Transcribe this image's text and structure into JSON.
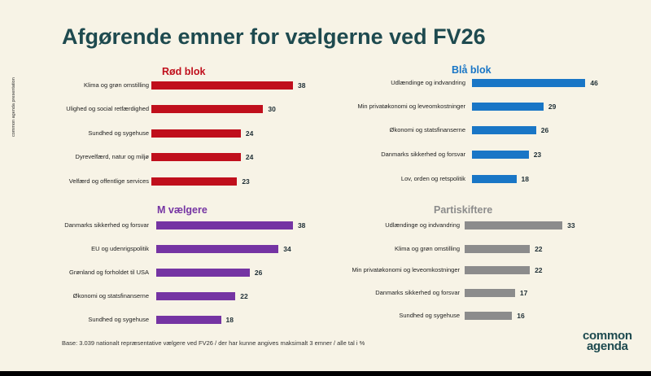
{
  "title": "Afgørende emner for vælgerne ved FV26",
  "side_label": "common agenda presentation",
  "footnote": "Base: 3.039 nationalt repræsentative vælgere ved FV26 / der har kunne angives maksimalt 3 emner / alle tal i %",
  "logo": {
    "line1": "common",
    "line2": "agenda"
  },
  "colors": {
    "rod": "#c00f1c",
    "bla": "#1976c6",
    "m": "#7534a3",
    "parti": "#8c8c8c"
  },
  "chart_data": [
    {
      "type": "bar",
      "orientation": "horizontal",
      "title": "Rød blok",
      "color": "#c00f1c",
      "categories": [
        "Klima og grøn omstilling",
        "Ulighed og social retfærdighed",
        "Sundhed og sygehuse",
        "Dyrevelfærd, natur og miljø",
        "Velfærd og offentlige services"
      ],
      "values": [
        38,
        30,
        24,
        24,
        23
      ],
      "labels": [
        "38",
        "30",
        "24",
        "24",
        "23"
      ]
    },
    {
      "type": "bar",
      "orientation": "horizontal",
      "title": "Blå blok",
      "color": "#1976c6",
      "categories": [
        "Udlændinge og indvandring",
        "Min privatøkonomi og leveomkostninger",
        "Økonomi og statsfinanserne",
        "Danmarks sikkerhed og forsvar",
        "Lov, orden og retspolitik"
      ],
      "values": [
        46,
        29,
        26,
        23,
        18
      ],
      "labels": [
        "46",
        "29",
        "26",
        "23",
        "18"
      ]
    },
    {
      "type": "bar",
      "orientation": "horizontal",
      "title": "M vælgere",
      "color": "#7534a3",
      "categories": [
        "Danmarks sikkerhed og forsvar",
        "EU og udenrigspolitik",
        "Grønland og forholdet til USA",
        "Økonomi og statsfinanserne",
        "Sundhed og sygehuse"
      ],
      "values": [
        38,
        34,
        26,
        22,
        18
      ],
      "labels": [
        "38",
        "34",
        "26",
        "22",
        "18"
      ]
    },
    {
      "type": "bar",
      "orientation": "horizontal",
      "title": "Partiskiftere",
      "color": "#8c8c8c",
      "categories": [
        "Udlændinge og indvandring",
        "Klima og grøn omstilling",
        "Min privatøkonomi og leveomkostninger",
        "Danmarks sikkerhed og forsvar",
        "Sundhed og sygehuse"
      ],
      "values": [
        33,
        22,
        22,
        17,
        16
      ],
      "labels": [
        "33",
        "22",
        "22",
        "17",
        "16"
      ]
    }
  ]
}
